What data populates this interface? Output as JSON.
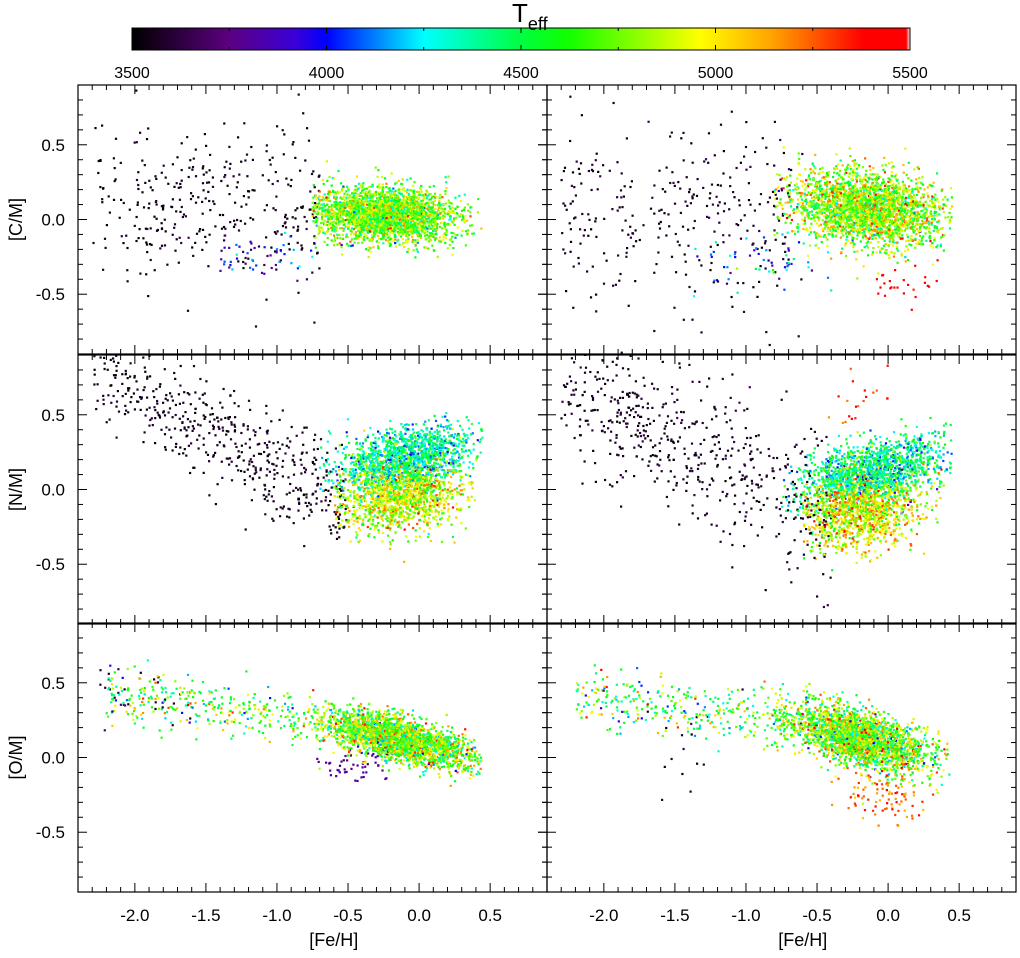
{
  "colorbar": {
    "label_main": "T",
    "label_sub": "eff",
    "range": [
      3500,
      5500
    ],
    "ticks": [
      "3500",
      "4000",
      "4500",
      "5000",
      "5500"
    ],
    "tick_values": [
      3500,
      4000,
      4500,
      5000,
      5500
    ],
    "minor_values": [
      3750,
      4250,
      4750,
      5250
    ],
    "stops": [
      {
        "t": 3500,
        "c": "#000000"
      },
      {
        "t": 3750,
        "c": "#5c0080"
      },
      {
        "t": 3920,
        "c": "#3a00d8"
      },
      {
        "t": 4000,
        "c": "#0000ff"
      },
      {
        "t": 4250,
        "c": "#00ffff"
      },
      {
        "t": 4500,
        "c": "#00ff40"
      },
      {
        "t": 4620,
        "c": "#10ff00"
      },
      {
        "t": 4960,
        "c": "#ffff00"
      },
      {
        "t": 5150,
        "c": "#ffa000"
      },
      {
        "t": 5380,
        "c": "#ff0000"
      },
      {
        "t": 5490,
        "c": "#ff0000"
      },
      {
        "t": 5500,
        "c": "#ffffff"
      }
    ]
  },
  "chart_data": {
    "type": "scatter",
    "xlabel": "[Fe/H]",
    "xlim": [
      -2.4,
      0.9
    ],
    "ylim": [
      -0.9,
      0.9
    ],
    "x_ticks": [
      "-2.0",
      "-1.5",
      "-1.0",
      "-0.5",
      "0.0",
      "0.5"
    ],
    "x_tick_values": [
      -2.0,
      -1.5,
      -1.0,
      -0.5,
      0.0,
      0.5
    ],
    "y_ticks": [
      "0.5",
      "0.0",
      "-0.5"
    ],
    "y_tick_values": [
      0.5,
      0.0,
      -0.5
    ],
    "color_by": "Teff",
    "panels": [
      {
        "row": 0,
        "col": 0,
        "ylabel": "[C/M]",
        "seed": 11,
        "clusters": [
          {
            "feh": [
              -2.3,
              -0.7
            ],
            "dist": "uniform",
            "val0": 0.1,
            "slope": 0.0,
            "ref": -1.5,
            "val_sd": 0.28,
            "teff": [
              3550,
              40
            ],
            "n": 330
          },
          {
            "feh": [
              -0.25,
              0.25
            ],
            "dist": "normal",
            "clip": [
              -0.75,
              0.45
            ],
            "val0": 0.02,
            "slope": -0.05,
            "ref": 0,
            "val_sd": 0.09,
            "teff": [
              4750,
              230
            ],
            "n": 2600
          },
          {
            "feh": [
              -1.3,
              0.35
            ],
            "dist": "normal",
            "clip": [
              -1.4,
              -0.3
            ],
            "val0": -0.25,
            "slope": 0.0,
            "ref": 0,
            "val_sd": 0.08,
            "teff": [
              3950,
              200
            ],
            "n": 60
          }
        ]
      },
      {
        "row": 0,
        "col": 1,
        "ylabel": "[C/M]",
        "seed": 23,
        "clusters": [
          {
            "feh": [
              -2.3,
              -0.6
            ],
            "dist": "uniform",
            "val0": 0.05,
            "slope": 0.0,
            "ref": -1.5,
            "val_sd": 0.32,
            "teff": [
              3560,
              50
            ],
            "n": 300
          },
          {
            "feh": [
              -0.15,
              0.28
            ],
            "dist": "normal",
            "clip": [
              -0.8,
              0.45
            ],
            "val0": 0.06,
            "slope": -0.1,
            "ref": 0,
            "val_sd": 0.12,
            "teff": [
              4800,
              260
            ],
            "n": 2600
          },
          {
            "feh": [
              0.1,
              0.15
            ],
            "dist": "normal",
            "clip": [
              -0.2,
              0.35
            ],
            "val0": -0.45,
            "slope": 0.0,
            "ref": 0,
            "val_sd": 0.05,
            "teff": [
              5420,
              30
            ],
            "n": 25
          },
          {
            "feh": [
              -0.9,
              0.3
            ],
            "dist": "normal",
            "clip": [
              -1.4,
              -0.4
            ],
            "val0": -0.3,
            "slope": 0.0,
            "ref": 0,
            "val_sd": 0.12,
            "teff": [
              4100,
              250
            ],
            "n": 60
          }
        ]
      },
      {
        "row": 1,
        "col": 0,
        "ylabel": "[N/M]",
        "seed": 37,
        "clusters": [
          {
            "feh": [
              -2.3,
              -0.5
            ],
            "dist": "uniform",
            "val0": 0.65,
            "slope": -0.5,
            "ref": -2.0,
            "val_sd": 0.18,
            "teff": [
              3550,
              40
            ],
            "n": 520
          },
          {
            "feh": [
              -0.1,
              0.25
            ],
            "dist": "normal",
            "clip": [
              -0.7,
              0.45
            ],
            "val0": 0.22,
            "slope": 0.15,
            "ref": 0,
            "val_sd": 0.1,
            "teff": [
              4350,
              180
            ],
            "n": 1400
          },
          {
            "feh": [
              -0.15,
              0.22
            ],
            "dist": "normal",
            "clip": [
              -0.6,
              0.4
            ],
            "val0": -0.02,
            "slope": 0.1,
            "ref": 0,
            "val_sd": 0.12,
            "teff": [
              4900,
              200
            ],
            "n": 1300
          }
        ]
      },
      {
        "row": 1,
        "col": 1,
        "ylabel": "[N/M]",
        "seed": 53,
        "clusters": [
          {
            "feh": [
              -2.3,
              -0.4
            ],
            "dist": "uniform",
            "val0": 0.55,
            "slope": -0.45,
            "ref": -2.0,
            "val_sd": 0.25,
            "teff": [
              3560,
              50
            ],
            "n": 560
          },
          {
            "feh": [
              -0.1,
              0.27
            ],
            "dist": "normal",
            "clip": [
              -0.75,
              0.45
            ],
            "val0": 0.15,
            "slope": 0.2,
            "ref": 0,
            "val_sd": 0.1,
            "teff": [
              4400,
              200
            ],
            "n": 1400
          },
          {
            "feh": [
              -0.2,
              0.22
            ],
            "dist": "normal",
            "clip": [
              -0.6,
              0.4
            ],
            "val0": -0.12,
            "slope": 0.1,
            "ref": 0,
            "val_sd": 0.13,
            "teff": [
              4950,
              220
            ],
            "n": 1300
          },
          {
            "feh": [
              -0.2,
              0.15
            ],
            "dist": "normal",
            "clip": [
              -0.5,
              0.3
            ],
            "val0": 0.6,
            "slope": 0.0,
            "ref": 0,
            "val_sd": 0.1,
            "teff": [
              5300,
              100
            ],
            "n": 20
          }
        ]
      },
      {
        "row": 2,
        "col": 0,
        "ylabel": "[O/M]",
        "seed": 71,
        "clusters": [
          {
            "feh": [
              -2.25,
              -1.6
            ],
            "dist": "uniform",
            "val0": 0.42,
            "slope": -0.1,
            "ref": -2.0,
            "val_sd": 0.1,
            "teff": [
              3600,
              80
            ],
            "n": 30
          },
          {
            "feh": [
              -2.2,
              -0.7
            ],
            "dist": "uniform",
            "val0": 0.4,
            "slope": -0.12,
            "ref": -2.0,
            "val_sd": 0.09,
            "teff": [
              4650,
              300
            ],
            "n": 330
          },
          {
            "feh": [
              -0.15,
              0.25
            ],
            "dist": "normal",
            "clip": [
              -0.75,
              0.45
            ],
            "val0": 0.09,
            "slope": -0.22,
            "ref": 0,
            "val_sd": 0.07,
            "teff": [
              4750,
              280
            ],
            "n": 2600
          },
          {
            "feh": [
              -0.4,
              0.2
            ],
            "dist": "normal",
            "clip": [
              -1.0,
              -0.2
            ],
            "val0": -0.05,
            "slope": 0.0,
            "ref": 0,
            "val_sd": 0.05,
            "teff": [
              3800,
              60
            ],
            "n": 50
          }
        ]
      },
      {
        "row": 2,
        "col": 1,
        "ylabel": "[O/M]",
        "seed": 97,
        "clusters": [
          {
            "feh": [
              -2.2,
              -0.7
            ],
            "dist": "uniform",
            "val0": 0.38,
            "slope": -0.1,
            "ref": -2.0,
            "val_sd": 0.1,
            "teff": [
              4600,
              320
            ],
            "n": 330
          },
          {
            "feh": [
              -1.5,
              0.2
            ],
            "dist": "normal",
            "clip": [
              -2.0,
              -1.0
            ],
            "val0": 0.1,
            "slope": 0.0,
            "ref": 0,
            "val_sd": 0.2,
            "teff": [
              3600,
              60
            ],
            "n": 15
          },
          {
            "feh": [
              -0.2,
              0.25
            ],
            "dist": "normal",
            "clip": [
              -0.8,
              0.45
            ],
            "val0": 0.08,
            "slope": -0.25,
            "ref": 0,
            "val_sd": 0.09,
            "teff": [
              4750,
              300
            ],
            "n": 2600
          },
          {
            "feh": [
              -0.05,
              0.18
            ],
            "dist": "normal",
            "clip": [
              -0.4,
              0.3
            ],
            "val0": -0.25,
            "slope": 0.0,
            "ref": 0,
            "val_sd": 0.08,
            "teff": [
              5250,
              120
            ],
            "n": 90
          }
        ]
      }
    ]
  }
}
